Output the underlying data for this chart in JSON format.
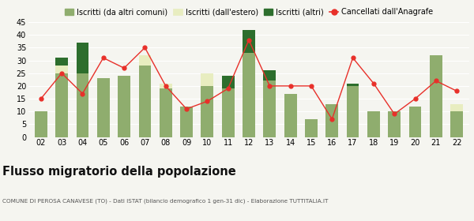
{
  "years": [
    "02",
    "03",
    "04",
    "05",
    "06",
    "07",
    "08",
    "09",
    "10",
    "11",
    "12",
    "13",
    "14",
    "15",
    "16",
    "17",
    "18",
    "19",
    "20",
    "21",
    "22"
  ],
  "iscritti_altri_comuni": [
    10,
    25,
    25,
    23,
    24,
    28,
    19,
    12,
    20,
    19,
    33,
    22,
    17,
    7,
    13,
    20,
    10,
    10,
    12,
    32,
    10
  ],
  "iscritti_estero": [
    0,
    3,
    0,
    0,
    0,
    4,
    2,
    0,
    5,
    0,
    0,
    0,
    0,
    0,
    0,
    0,
    0,
    0,
    0,
    0,
    3
  ],
  "iscritti_altri": [
    0,
    3,
    12,
    0,
    0,
    0,
    0,
    0,
    0,
    5,
    9,
    4,
    0,
    0,
    0,
    1,
    0,
    0,
    0,
    0,
    0
  ],
  "cancellati": [
    15,
    25,
    17,
    31,
    27,
    35,
    20,
    11,
    14,
    19,
    38,
    20,
    20,
    20,
    7,
    31,
    21,
    9,
    15,
    22,
    18
  ],
  "color_altri_comuni": "#8fad6e",
  "color_estero": "#e8edc0",
  "color_altri": "#2d6e2d",
  "color_cancellati": "#e8302a",
  "ylim": [
    0,
    45
  ],
  "yticks": [
    0,
    5,
    10,
    15,
    20,
    25,
    30,
    35,
    40,
    45
  ],
  "legend_labels": [
    "Iscritti (da altri comuni)",
    "Iscritti (dall'estero)",
    "Iscritti (altri)",
    "Cancellati dall'Anagrafe"
  ],
  "title": "Flusso migratorio della popolazione",
  "subtitle": "COMUNE DI PEROSA CANAVESE (TO) - Dati ISTAT (bilancio demografico 1 gen-31 dic) - Elaborazione TUTTITALIA.IT",
  "bg_color": "#f5f5f0",
  "grid_color": "#ffffff"
}
